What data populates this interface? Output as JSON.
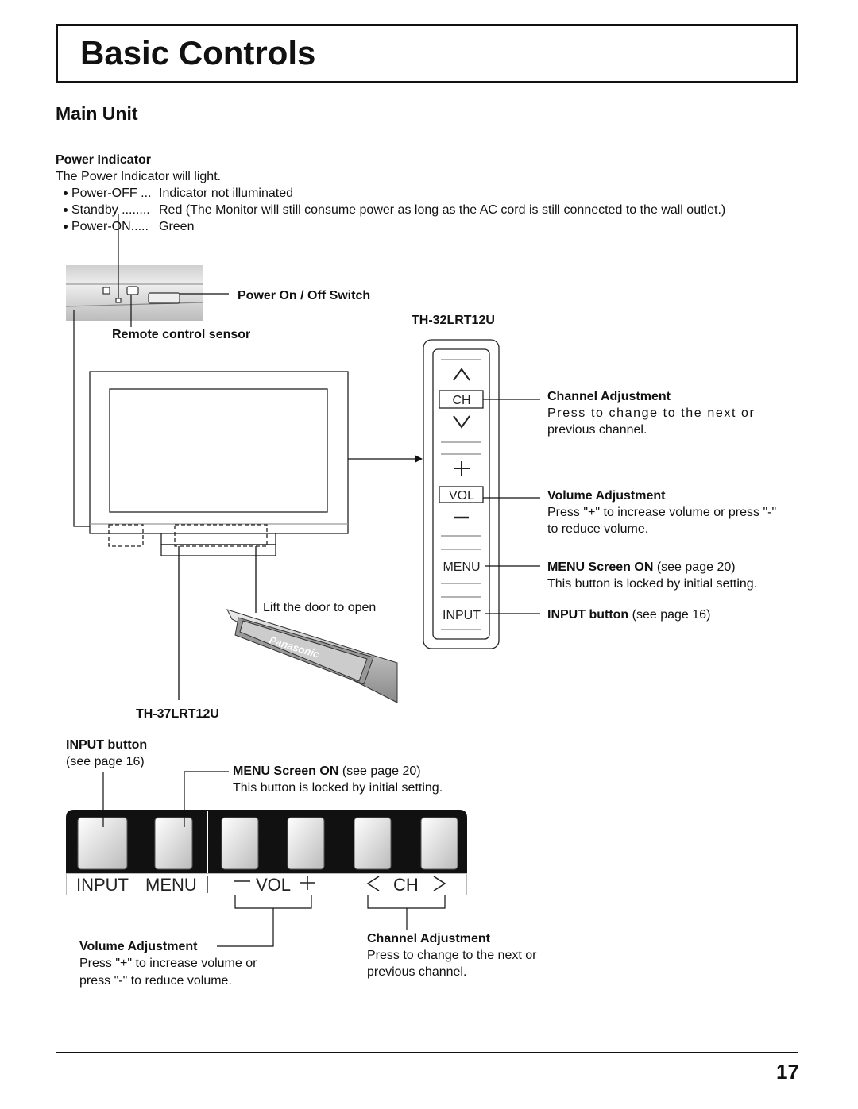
{
  "header": {
    "title": "Basic Controls"
  },
  "section": {
    "title": "Main Unit"
  },
  "power_indicator": {
    "title": "Power Indicator",
    "intro": "The Power Indicator will light.",
    "items": [
      {
        "label": "Power-OFF ...",
        "text": "Indicator not illuminated"
      },
      {
        "label": "Standby ........",
        "text": "Red (The Monitor will still consume power as long as the AC cord is still connected to the wall outlet.)"
      },
      {
        "label": "Power-ON.....",
        "text": "Green"
      }
    ]
  },
  "main_unit": {
    "power_switch": "Power On / Off Switch",
    "remote_sensor": "Remote control sensor",
    "door_note": "Lift the door to open",
    "door_brand": "Panasonic"
  },
  "th32": {
    "model": "TH-32LRT12U",
    "buttons": [
      "CH",
      "VOL",
      "MENU",
      "INPUT"
    ],
    "channel": {
      "title": "Channel Adjustment",
      "lines": [
        "Press to change to the next or",
        "previous channel."
      ]
    },
    "volume": {
      "title": "Volume Adjustment",
      "lines": [
        "Press \"+\" to increase volume or press \"-\"",
        "to reduce volume."
      ]
    },
    "menu": {
      "title": "MENU Screen ON",
      "ref": "(see page 20)",
      "note": "This button is locked by initial setting."
    },
    "input": {
      "title": "INPUT button",
      "ref": "(see page 16)"
    }
  },
  "th37": {
    "model": "TH-37LRT12U",
    "panel_labels": [
      "INPUT",
      "MENU",
      "VOL",
      "CH"
    ],
    "input": {
      "title": "INPUT button",
      "ref": "(see page 16)"
    },
    "menu": {
      "title": "MENU Screen ON",
      "ref": "(see page 20)",
      "note": "This button is locked by initial setting."
    },
    "volume": {
      "title": "Volume Adjustment",
      "lines": [
        "Press \"+\" to increase volume or",
        "press \"-\" to reduce volume."
      ]
    },
    "channel": {
      "title": "Channel Adjustment",
      "lines": [
        "Press to change to the next or",
        "previous channel."
      ]
    }
  },
  "footer": {
    "page_number": "17"
  }
}
